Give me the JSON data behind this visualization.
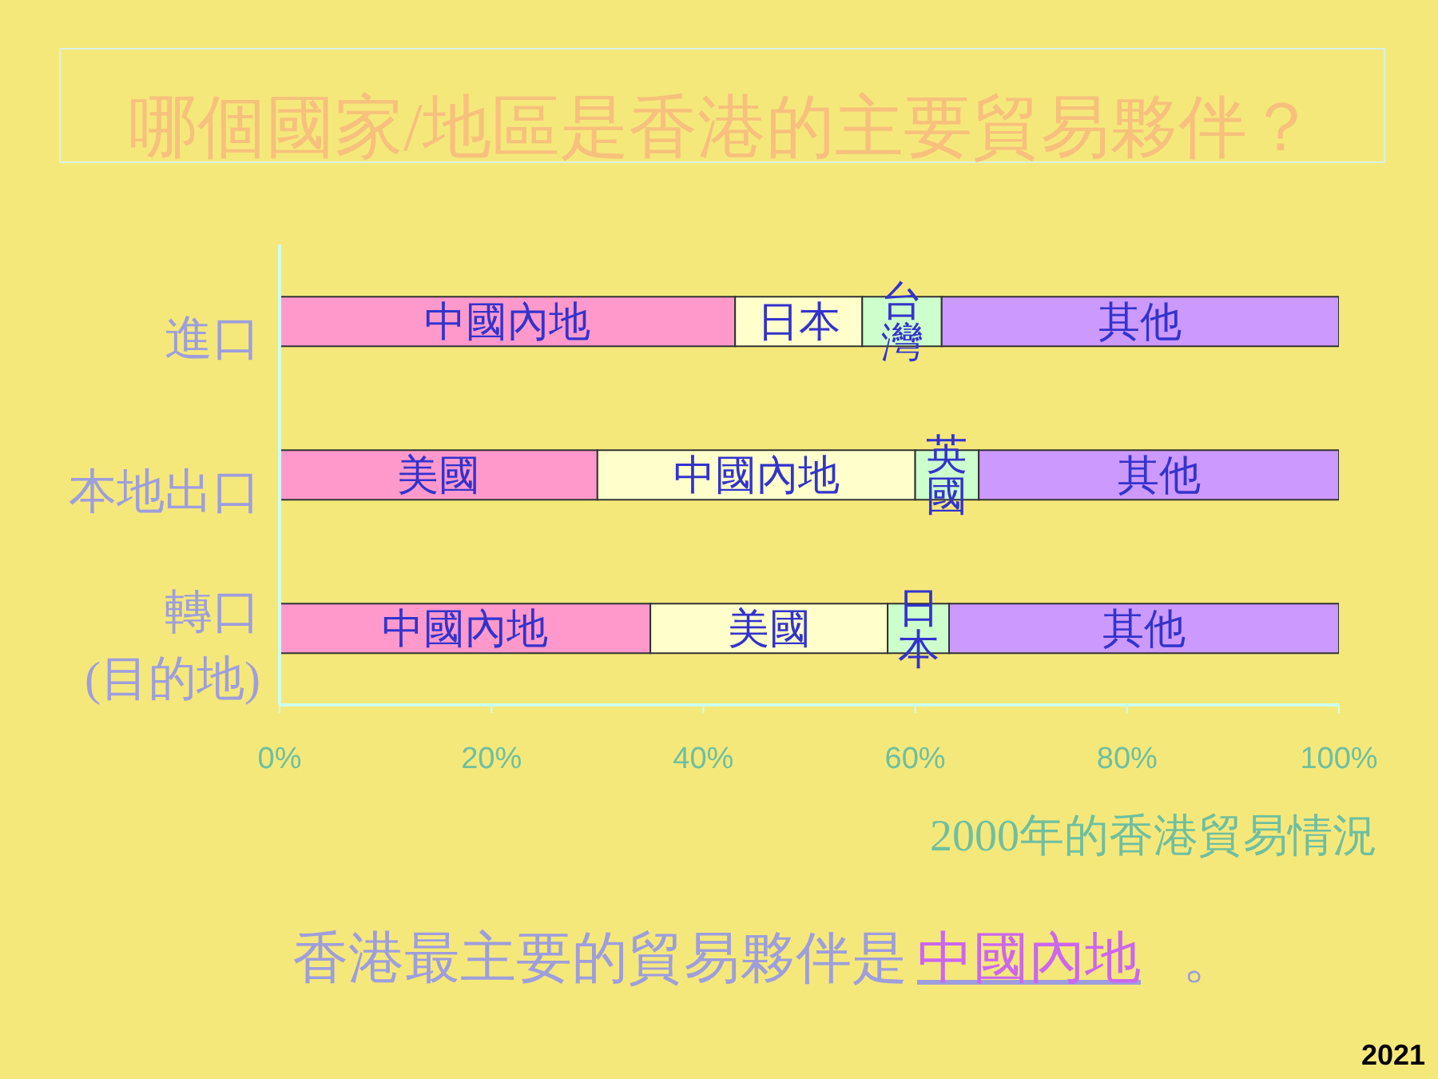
{
  "chart_data": {
    "type": "bar",
    "orientation": "horizontal",
    "stacked": true,
    "title": "哪個國家/地區是香港的主要貿易夥伴？",
    "xlabel": "2000年的香港貿易情況",
    "categories": [
      "進口",
      "本地出口",
      "轉口\n(目的地)"
    ],
    "series": [
      {
        "color": "#ff99cc",
        "values": [
          43,
          30,
          35
        ],
        "value_labels": [
          "中國內地",
          "美國",
          "中國內地"
        ]
      },
      {
        "color": "#ffffcc",
        "values": [
          12,
          30,
          22.4
        ],
        "value_labels": [
          "日本",
          "中國內地",
          "美國"
        ]
      },
      {
        "color": "#ccffcc",
        "values": [
          7.5,
          6,
          5.8
        ],
        "value_labels": [
          "台灣",
          "英國",
          "日本"
        ]
      },
      {
        "color": "#cc99ff",
        "values": [
          37.5,
          34,
          36.8
        ],
        "value_labels": [
          "其他",
          "其他",
          "其他"
        ]
      }
    ],
    "xlim": [
      0,
      100
    ],
    "xticks": [
      {
        "value": 0,
        "label": "0%"
      },
      {
        "value": 20,
        "label": "20%"
      },
      {
        "value": 40,
        "label": "40%"
      },
      {
        "value": 60,
        "label": "60%"
      },
      {
        "value": 80,
        "label": "80%"
      },
      {
        "value": 100,
        "label": "100%"
      }
    ],
    "annotations": [
      "香港最主要的貿易夥伴是",
      "中國內地",
      "。",
      "2021"
    ]
  }
}
